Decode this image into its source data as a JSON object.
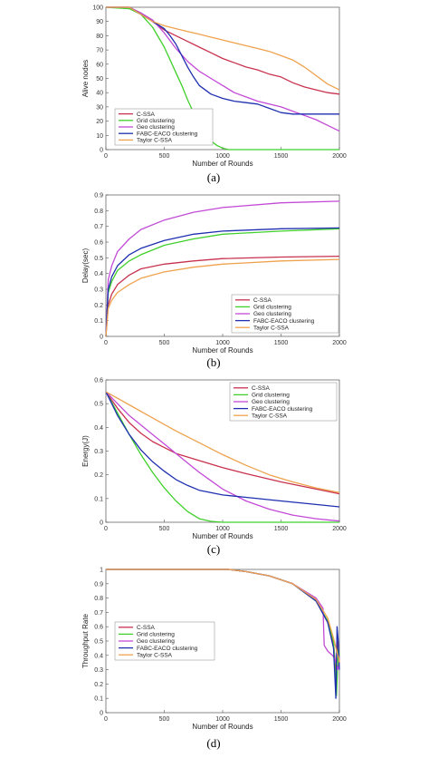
{
  "colors": {
    "C-SSA": "#c8324e",
    "Grid clustering": "#3fd02a",
    "Geo clustering": "#c24ad6",
    "FABC-EACO clustering": "#1f2fb0",
    "Taylor C-SSA": "#efa24e"
  },
  "chart_data": [
    {
      "type": "line",
      "caption": "(a)",
      "xlabel": "Number of Rounds",
      "ylabel": "Alive nodes",
      "xlim": [
        0,
        2000
      ],
      "ylim": [
        0,
        100
      ],
      "xticks": [
        "0",
        "500",
        "1000",
        "1500",
        "2000"
      ],
      "yticks": [
        "0",
        "10",
        "20",
        "30",
        "40",
        "50",
        "60",
        "70",
        "80",
        "90",
        "100"
      ],
      "legend_position": "bottom-left",
      "series": [
        {
          "name": "C-SSA",
          "x": [
            0,
            200,
            300,
            400,
            500,
            600,
            700,
            800,
            900,
            1000,
            1100,
            1200,
            1300,
            1400,
            1500,
            1600,
            1700,
            1800,
            1900,
            2000
          ],
          "values": [
            100,
            100,
            96,
            90,
            84,
            80,
            76,
            72,
            68,
            64,
            61,
            58,
            56,
            53,
            51,
            47,
            44,
            42,
            40,
            39
          ]
        },
        {
          "name": "Grid clustering",
          "x": [
            0,
            200,
            300,
            400,
            500,
            600,
            650,
            700,
            750,
            800,
            850,
            900,
            950,
            1000,
            1050,
            1100,
            2000
          ],
          "values": [
            100,
            99,
            95,
            86,
            72,
            54,
            45,
            35,
            26,
            18,
            11,
            6,
            3,
            1,
            0,
            0,
            0
          ]
        },
        {
          "name": "Geo clustering",
          "x": [
            0,
            200,
            300,
            400,
            500,
            600,
            700,
            800,
            900,
            1000,
            1100,
            1200,
            1300,
            1400,
            1500,
            1600,
            1700,
            1800,
            1900,
            2000
          ],
          "values": [
            100,
            100,
            96,
            91,
            82,
            71,
            62,
            55,
            50,
            45,
            40,
            37,
            34,
            32,
            30,
            27,
            24,
            21,
            17,
            13
          ]
        },
        {
          "name": "FABC-EACO clustering",
          "x": [
            0,
            200,
            300,
            400,
            500,
            550,
            600,
            650,
            700,
            750,
            800,
            900,
            1000,
            1100,
            1200,
            1300,
            1400,
            1500,
            1600,
            1700,
            1800,
            1900,
            2000
          ],
          "values": [
            100,
            100,
            95,
            90,
            85,
            80,
            74,
            66,
            58,
            51,
            45,
            39,
            36,
            34,
            33,
            32,
            29,
            26,
            25,
            25,
            25,
            25,
            25
          ]
        },
        {
          "name": "Taylor C-SSA",
          "x": [
            0,
            200,
            300,
            400,
            500,
            600,
            700,
            800,
            900,
            1000,
            1100,
            1200,
            1300,
            1400,
            1500,
            1600,
            1700,
            1800,
            1900,
            2000
          ],
          "values": [
            100,
            100,
            95,
            90,
            87,
            85,
            83,
            81,
            79,
            77,
            75,
            73,
            71,
            69,
            66,
            63,
            58,
            52,
            46,
            42
          ]
        }
      ]
    },
    {
      "type": "line",
      "caption": "(b)",
      "xlabel": "Number of Rounds",
      "ylabel": "Delay(sec)",
      "xlim": [
        0,
        2000
      ],
      "ylim": [
        0,
        0.9
      ],
      "xticks": [
        "0",
        "500",
        "1000",
        "1500",
        "2000"
      ],
      "yticks": [
        "0",
        "0.1",
        "0.2",
        "0.3",
        "0.4",
        "0.5",
        "0.6",
        "0.7",
        "0.8",
        "0.9"
      ],
      "legend_position": "bottom-right",
      "series": [
        {
          "name": "C-SSA",
          "x": [
            0,
            20,
            50,
            100,
            200,
            300,
            500,
            750,
            1000,
            1500,
            2000
          ],
          "values": [
            0,
            0.2,
            0.27,
            0.33,
            0.39,
            0.43,
            0.46,
            0.48,
            0.495,
            0.505,
            0.51
          ]
        },
        {
          "name": "Grid clustering",
          "x": [
            0,
            20,
            50,
            100,
            200,
            300,
            500,
            750,
            1000,
            1500,
            2000
          ],
          "values": [
            0,
            0.28,
            0.35,
            0.42,
            0.48,
            0.52,
            0.58,
            0.62,
            0.65,
            0.67,
            0.685
          ]
        },
        {
          "name": "Geo clustering",
          "x": [
            0,
            20,
            50,
            100,
            200,
            300,
            500,
            750,
            1000,
            1500,
            2000
          ],
          "values": [
            0,
            0.36,
            0.45,
            0.54,
            0.62,
            0.68,
            0.74,
            0.79,
            0.82,
            0.85,
            0.86
          ]
        },
        {
          "name": "FABC-EACO clustering",
          "x": [
            0,
            20,
            50,
            100,
            200,
            300,
            500,
            750,
            1000,
            1500,
            2000
          ],
          "values": [
            0,
            0.3,
            0.38,
            0.45,
            0.52,
            0.56,
            0.61,
            0.65,
            0.67,
            0.685,
            0.69
          ]
        },
        {
          "name": "Taylor C-SSA",
          "x": [
            0,
            20,
            50,
            100,
            200,
            300,
            500,
            750,
            1000,
            1500,
            2000
          ],
          "values": [
            0,
            0.18,
            0.23,
            0.28,
            0.33,
            0.37,
            0.41,
            0.44,
            0.46,
            0.48,
            0.49
          ]
        }
      ]
    },
    {
      "type": "line",
      "caption": "(c)",
      "xlabel": "Number of Rounds",
      "ylabel": "Energy(J)",
      "xlim": [
        0,
        2000
      ],
      "ylim": [
        0,
        0.6
      ],
      "xticks": [
        "0",
        "500",
        "1000",
        "1500",
        "2000"
      ],
      "yticks": [
        "0",
        "0.1",
        "0.2",
        "0.3",
        "0.4",
        "0.5",
        "0.6"
      ],
      "legend_position": "top-right",
      "series": [
        {
          "name": "C-SSA",
          "x": [
            0,
            100,
            200,
            300,
            400,
            500,
            600,
            800,
            1000,
            1200,
            1500,
            1800,
            2000
          ],
          "values": [
            0.55,
            0.48,
            0.42,
            0.375,
            0.34,
            0.315,
            0.29,
            0.26,
            0.23,
            0.205,
            0.17,
            0.14,
            0.12
          ]
        },
        {
          "name": "Grid clustering",
          "x": [
            0,
            100,
            200,
            300,
            400,
            500,
            600,
            700,
            800,
            900,
            1000,
            1100,
            2000
          ],
          "values": [
            0.55,
            0.46,
            0.37,
            0.285,
            0.21,
            0.145,
            0.09,
            0.045,
            0.015,
            0.004,
            0,
            0,
            0
          ]
        },
        {
          "name": "Geo clustering",
          "x": [
            0,
            100,
            200,
            300,
            400,
            500,
            600,
            700,
            800,
            900,
            1000,
            1200,
            1400,
            1600,
            1800,
            2000
          ],
          "values": [
            0.55,
            0.5,
            0.45,
            0.41,
            0.37,
            0.33,
            0.29,
            0.25,
            0.21,
            0.175,
            0.14,
            0.09,
            0.055,
            0.03,
            0.015,
            0.005
          ]
        },
        {
          "name": "FABC-EACO clustering",
          "x": [
            0,
            100,
            200,
            300,
            400,
            500,
            600,
            700,
            800,
            1000,
            1200,
            1500,
            1800,
            2000
          ],
          "values": [
            0.55,
            0.45,
            0.37,
            0.305,
            0.255,
            0.215,
            0.18,
            0.155,
            0.135,
            0.115,
            0.105,
            0.09,
            0.075,
            0.065
          ]
        },
        {
          "name": "Taylor C-SSA",
          "x": [
            0,
            200,
            400,
            600,
            800,
            1000,
            1200,
            1400,
            1600,
            1800,
            2000
          ],
          "values": [
            0.55,
            0.495,
            0.44,
            0.385,
            0.335,
            0.285,
            0.24,
            0.2,
            0.17,
            0.145,
            0.125
          ]
        }
      ]
    },
    {
      "type": "line",
      "caption": "(d)",
      "xlabel": "Number of Rounds",
      "ylabel": "Throughput Rate",
      "xlim": [
        0,
        2000
      ],
      "ylim": [
        0,
        1
      ],
      "xticks": [
        "0",
        "500",
        "1000",
        "1500",
        "2000"
      ],
      "yticks": [
        "0",
        "0.1",
        "0.2",
        "0.3",
        "0.4",
        "0.5",
        "0.6",
        "0.7",
        "0.8",
        "0.9",
        "1"
      ],
      "legend_position": "center-left",
      "series": [
        {
          "name": "C-SSA",
          "x": [
            0,
            1000,
            1050,
            1200,
            1400,
            1600,
            1800,
            1900,
            1950,
            1970,
            1985,
            2000
          ],
          "values": [
            1,
            1,
            1,
            0.985,
            0.955,
            0.9,
            0.78,
            0.63,
            0.48,
            0.3,
            0.5,
            0.35
          ]
        },
        {
          "name": "Grid clustering",
          "x": [
            0,
            1000,
            1050,
            1200,
            1400,
            1600,
            1800,
            1900,
            1950,
            1975,
            1990,
            2000
          ],
          "values": [
            1,
            1,
            1,
            0.985,
            0.955,
            0.9,
            0.78,
            0.64,
            0.5,
            0.12,
            0.45,
            0.4
          ]
        },
        {
          "name": "Geo clustering",
          "x": [
            0,
            1000,
            1050,
            1200,
            1400,
            1600,
            1800,
            1860,
            1870,
            1900,
            1940,
            1960,
            1985,
            2000
          ],
          "values": [
            1,
            1,
            1,
            0.985,
            0.955,
            0.9,
            0.8,
            0.73,
            0.47,
            0.43,
            0.4,
            0.38,
            0.3,
            0.35
          ]
        },
        {
          "name": "FABC-EACO clustering",
          "x": [
            0,
            1000,
            1050,
            1200,
            1400,
            1600,
            1800,
            1900,
            1950,
            1970,
            1980,
            1990,
            2000
          ],
          "values": [
            1,
            1,
            1,
            0.985,
            0.955,
            0.9,
            0.78,
            0.63,
            0.45,
            0.1,
            0.6,
            0.5,
            0.3
          ]
        },
        {
          "name": "Taylor C-SSA",
          "x": [
            0,
            1000,
            1050,
            1200,
            1400,
            1600,
            1800,
            1900,
            1950,
            1980,
            1995,
            2000
          ],
          "values": [
            1,
            1,
            1,
            0.985,
            0.955,
            0.9,
            0.79,
            0.66,
            0.52,
            0.42,
            0.38,
            0.35
          ]
        }
      ]
    }
  ]
}
